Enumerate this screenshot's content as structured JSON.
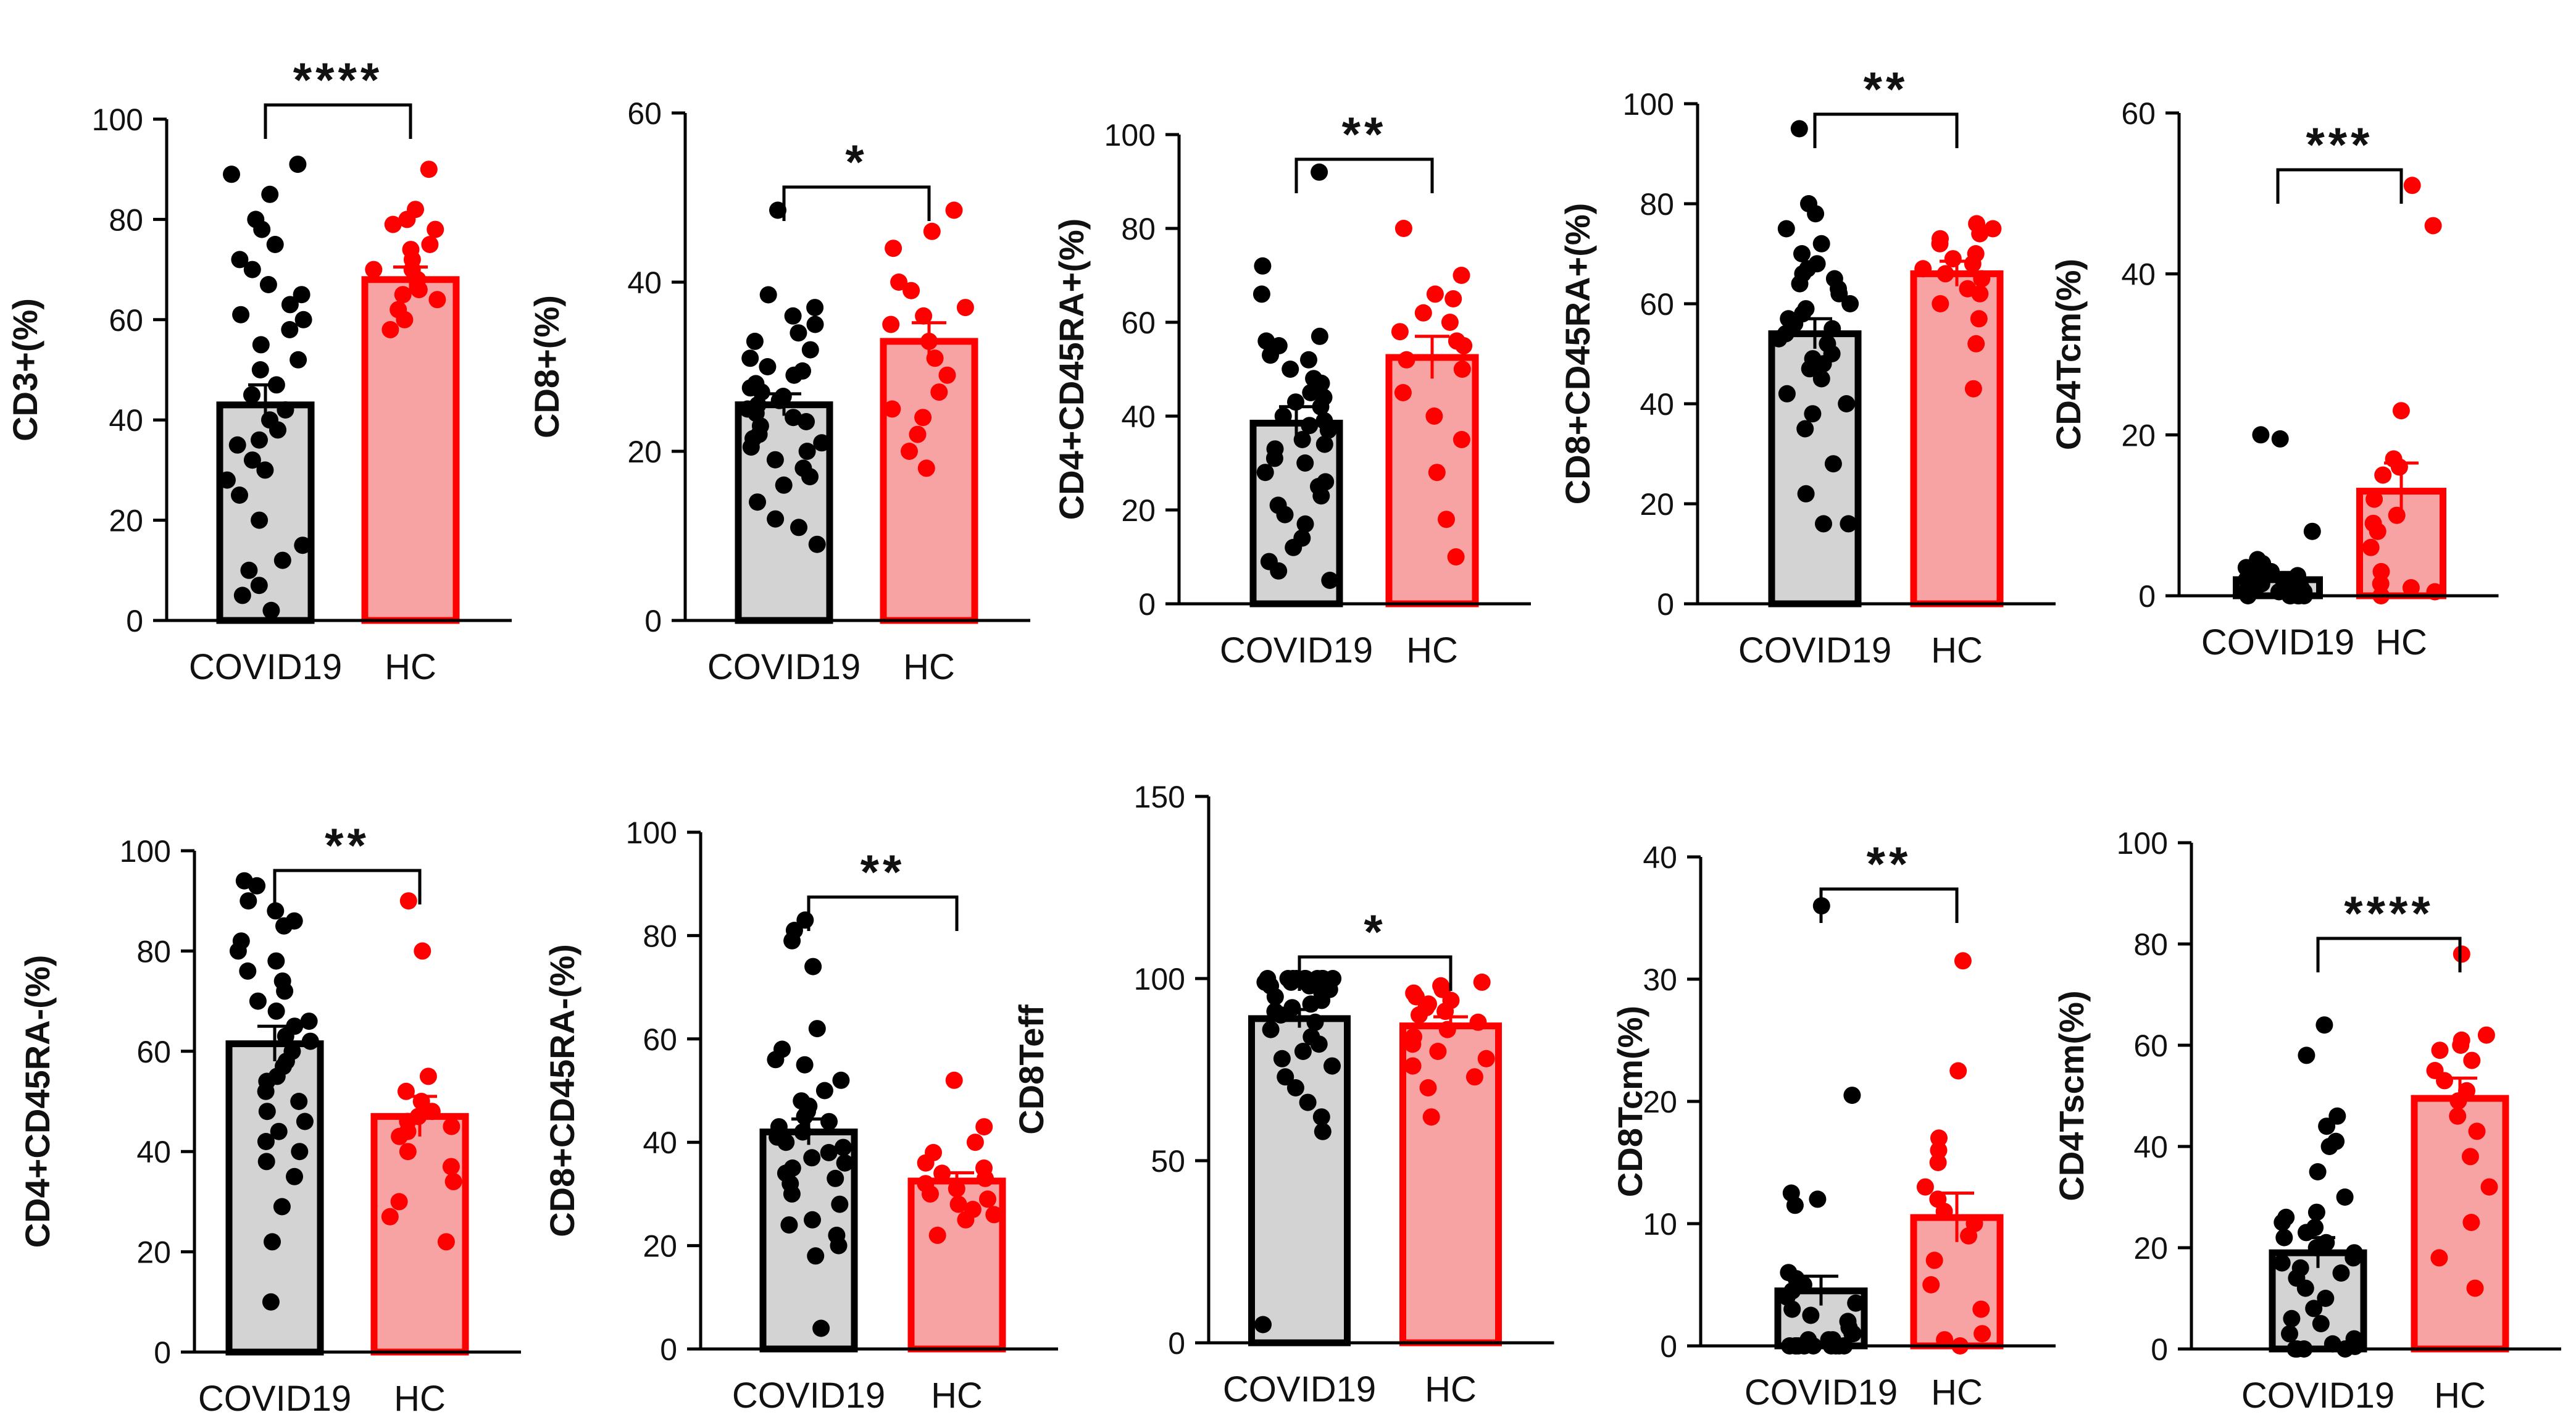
{
  "figure": {
    "groups": [
      "COVID19",
      "HC"
    ]
  },
  "colors": {
    "covid_fill": "#d3d3d3",
    "covid_edge": "#000000",
    "covid_dot": "#000000",
    "hc_fill": "#f7a3a3",
    "hc_edge": "#ff0000",
    "hc_dot": "#ff0000"
  },
  "chart_data": [
    {
      "type": "bar",
      "ylabel": "CD3+(%)",
      "ylim": [
        0,
        100
      ],
      "yticks": [
        0,
        20,
        40,
        60,
        80,
        100
      ],
      "categories": [
        "COVID19",
        "HC"
      ],
      "significance": "****",
      "means": [
        43,
        68
      ],
      "sem": [
        4,
        2.5
      ],
      "points": [
        [
          91,
          89,
          85,
          80,
          78,
          75,
          72,
          70,
          67,
          65,
          63,
          61,
          60,
          58,
          55,
          52,
          50,
          47,
          45,
          42,
          40,
          38,
          36,
          35,
          32,
          30,
          28,
          25,
          20,
          15,
          12,
          10,
          7,
          5,
          2
        ],
        [
          90,
          82,
          80,
          79,
          78,
          75,
          74,
          72,
          70,
          70,
          68,
          66,
          65,
          64,
          62,
          60,
          58
        ]
      ]
    },
    {
      "type": "bar",
      "ylabel": "CD8+(%)",
      "ylim": [
        0,
        60
      ],
      "yticks": [
        0,
        20,
        40,
        60
      ],
      "categories": [
        "COVID19",
        "HC"
      ],
      "significance": "*",
      "means": [
        25.5,
        33
      ],
      "sem": [
        1.3,
        2.2
      ],
      "points": [
        [
          48.5,
          38.5,
          37,
          36,
          35,
          34,
          33,
          32,
          31,
          30,
          29.5,
          29,
          28,
          27.5,
          27,
          26.5,
          26,
          25.5,
          25,
          24.5,
          24,
          23.5,
          23,
          22,
          21.5,
          21,
          20.5,
          20,
          19,
          18,
          17,
          16,
          14,
          12,
          11,
          9
        ],
        [
          48.5,
          46,
          44,
          40,
          39,
          37,
          36,
          35,
          33,
          31,
          29,
          27,
          25,
          24,
          22,
          20,
          18
        ]
      ]
    },
    {
      "type": "bar",
      "ylabel": "CD4+CD45RA+(%)",
      "ylim": [
        0,
        100
      ],
      "yticks": [
        0,
        20,
        40,
        60,
        80,
        100
      ],
      "categories": [
        "COVID19",
        "HC"
      ],
      "significance": "**",
      "means": [
        38.5,
        52.5
      ],
      "sem": [
        3.5,
        4.5
      ],
      "points": [
        [
          92,
          72,
          66,
          57,
          56,
          55,
          53,
          52,
          50,
          48,
          47,
          45,
          44,
          43,
          42,
          40,
          39,
          38,
          37,
          35,
          34,
          33,
          31,
          30,
          28,
          26,
          25,
          23,
          21,
          19,
          17,
          14,
          12,
          9,
          7,
          5
        ],
        [
          80,
          70,
          66,
          65,
          62,
          60,
          58,
          56,
          55,
          52,
          50,
          45,
          40,
          35,
          28,
          18,
          10
        ]
      ]
    },
    {
      "type": "bar",
      "ylabel": "CD8+CD45RA+(%)",
      "ylim": [
        0,
        100
      ],
      "yticks": [
        0,
        20,
        40,
        60,
        80,
        100
      ],
      "categories": [
        "COVID19",
        "HC"
      ],
      "significance": "**",
      "means": [
        54,
        66
      ],
      "sem": [
        3,
        2.5
      ],
      "points": [
        [
          95,
          80,
          78,
          75,
          72,
          70,
          68,
          67,
          66,
          65,
          64,
          63,
          62,
          60,
          59,
          58,
          57,
          56,
          55,
          54,
          53,
          52,
          50,
          49,
          48,
          47,
          45,
          42,
          40,
          38,
          35,
          28,
          22,
          16,
          16
        ],
        [
          76,
          75,
          74,
          73,
          72,
          70,
          69,
          68,
          67,
          66,
          65,
          63,
          62,
          60,
          57,
          52,
          43
        ]
      ]
    },
    {
      "type": "bar",
      "ylabel": "CD4Tcm(%)",
      "ylim": [
        0,
        60
      ],
      "yticks": [
        0,
        20,
        40,
        60
      ],
      "categories": [
        "COVID19",
        "HC"
      ],
      "significance": "***",
      "means": [
        2,
        13
      ],
      "sem": [
        0.9,
        3.5
      ],
      "points": [
        [
          20,
          19.5,
          8,
          4.5,
          4,
          3.5,
          3.5,
          3,
          3,
          2.5,
          2.5,
          2,
          2,
          2,
          1.5,
          1.5,
          1,
          1,
          1,
          0.5,
          0.5,
          0.5,
          0.5,
          0,
          0,
          0,
          0,
          0,
          0
        ],
        [
          51,
          46,
          23,
          17,
          16,
          15,
          12,
          10,
          9,
          8,
          6,
          3,
          1.5,
          1,
          0.5,
          0
        ]
      ]
    },
    {
      "type": "bar",
      "ylabel": "CD4+CD45RA-(%)",
      "ylim": [
        0,
        100
      ],
      "yticks": [
        0,
        20,
        40,
        60,
        80,
        100
      ],
      "categories": [
        "COVID19",
        "HC"
      ],
      "significance": "**",
      "means": [
        61.5,
        47
      ],
      "sem": [
        3.5,
        4
      ],
      "points": [
        [
          94,
          93,
          90,
          88,
          86,
          85,
          82,
          80,
          78,
          76,
          74,
          72,
          70,
          68,
          66,
          65,
          63,
          62,
          60,
          58,
          57,
          55,
          54,
          52,
          50,
          48,
          46,
          44,
          42,
          40,
          38,
          35,
          29,
          22,
          10
        ],
        [
          90,
          80,
          55,
          52,
          50,
          48,
          47,
          46,
          45,
          44,
          43,
          40,
          37,
          34,
          30,
          27,
          22
        ]
      ]
    },
    {
      "type": "bar",
      "ylabel": "CD8+CD45RA-(%)",
      "ylim": [
        0,
        100
      ],
      "yticks": [
        0,
        20,
        40,
        60,
        80,
        100
      ],
      "categories": [
        "COVID19",
        "HC"
      ],
      "significance": "**",
      "means": [
        42,
        32.5
      ],
      "sem": [
        2.5,
        1.6
      ],
      "points": [
        [
          83,
          81,
          79,
          74,
          62,
          58,
          56,
          55,
          52,
          50,
          48,
          47,
          46,
          45,
          44,
          43,
          42,
          41,
          40,
          39,
          38,
          37,
          36,
          35,
          34,
          33,
          32,
          30,
          28,
          25,
          24,
          22,
          20,
          18,
          4
        ],
        [
          52,
          43,
          40,
          38,
          36,
          35,
          34,
          33,
          32,
          31,
          30,
          29,
          28,
          27,
          26,
          25,
          22
        ]
      ]
    },
    {
      "type": "bar",
      "ylabel": "CD8Teff",
      "ylim": [
        0,
        150
      ],
      "yticks": [
        0,
        50,
        100,
        150
      ],
      "categories": [
        "COVID19",
        "HC"
      ],
      "significance": "*",
      "means": [
        89,
        87
      ],
      "sem": [
        2.5,
        2.5
      ],
      "points": [
        [
          100,
          100,
          100,
          100,
          100,
          100,
          100,
          100,
          100,
          100,
          99,
          99,
          99,
          98,
          98,
          97,
          96,
          95,
          94,
          93,
          92,
          91,
          90,
          88,
          86,
          84,
          82,
          80,
          78,
          76,
          73,
          70,
          66,
          62,
          58,
          5
        ],
        [
          99,
          98,
          97,
          96,
          95,
          94,
          93,
          92,
          91,
          90,
          88,
          86,
          84,
          82,
          80,
          78,
          76,
          73,
          70,
          62
        ]
      ]
    },
    {
      "type": "bar",
      "ylabel": "CD8Tcm(%)",
      "ylim": [
        0,
        40
      ],
      "yticks": [
        0,
        10,
        20,
        30,
        40
      ],
      "categories": [
        "COVID19",
        "HC"
      ],
      "significance": "**",
      "means": [
        4.5,
        10.5
      ],
      "sem": [
        1.2,
        2
      ],
      "points": [
        [
          36,
          20.5,
          12.5,
          12,
          11.5,
          6,
          5.5,
          5,
          4.5,
          4,
          3.5,
          3,
          2.5,
          2,
          1.5,
          1,
          1,
          0.5,
          0.5,
          0.5,
          0,
          0,
          0,
          0,
          0,
          0,
          0,
          0,
          0,
          0
        ],
        [
          31.5,
          22.5,
          17,
          16,
          15,
          13,
          12,
          11,
          10,
          9,
          7,
          5,
          3,
          1,
          0.5,
          0
        ]
      ]
    },
    {
      "type": "bar",
      "ylabel": "CD4Tscm(%)",
      "ylim": [
        0,
        100
      ],
      "yticks": [
        0,
        20,
        40,
        60,
        80,
        100
      ],
      "categories": [
        "COVID19",
        "HC"
      ],
      "significance": "****",
      "means": [
        19,
        49.5
      ],
      "sem": [
        3,
        4
      ],
      "points": [
        [
          64,
          58,
          46,
          44,
          41,
          40,
          35,
          30,
          27,
          26,
          25,
          24,
          23,
          22,
          21,
          20,
          19,
          18,
          17,
          16,
          15,
          14,
          12,
          10,
          8,
          6,
          5,
          3,
          2,
          1,
          0.5,
          0,
          0,
          0,
          0
        ],
        [
          78,
          62,
          61,
          60,
          59,
          57,
          55,
          53,
          51,
          49,
          46,
          43,
          38,
          32,
          25,
          18,
          12
        ]
      ]
    }
  ]
}
